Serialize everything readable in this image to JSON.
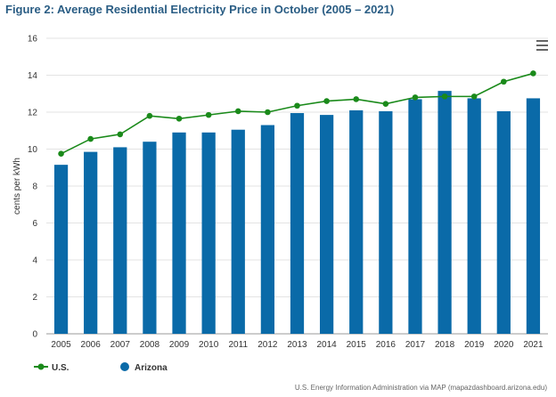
{
  "chart_data": {
    "type": "bar",
    "title": "Figure 2: Average Residential Electricity Price in October (2005 – 2021)",
    "ylabel": "cents per kWh",
    "xlabel": "",
    "ylim": [
      0,
      16
    ],
    "yticks": [
      0,
      2,
      4,
      6,
      8,
      10,
      12,
      14,
      16
    ],
    "grid": true,
    "legend_position": "bottom-left",
    "categories": [
      "2005",
      "2006",
      "2007",
      "2008",
      "2009",
      "2010",
      "2011",
      "2012",
      "2013",
      "2014",
      "2015",
      "2016",
      "2017",
      "2018",
      "2019",
      "2020",
      "2021"
    ],
    "series": [
      {
        "name": "Arizona",
        "type": "bar",
        "color": "#0a6aa8",
        "values": [
          9.15,
          9.85,
          10.1,
          10.4,
          10.9,
          10.9,
          11.05,
          11.3,
          11.95,
          11.85,
          12.1,
          12.05,
          12.7,
          13.15,
          12.75,
          12.05,
          12.75
        ]
      },
      {
        "name": "U.S.",
        "type": "line",
        "color": "#1a8a1a",
        "values": [
          9.75,
          10.55,
          10.8,
          11.8,
          11.65,
          11.85,
          12.05,
          12.0,
          12.35,
          12.6,
          12.7,
          12.45,
          12.8,
          12.85,
          12.85,
          13.65,
          14.1
        ]
      }
    ]
  },
  "source": "U.S. Energy Information Administration via MAP (mapazdashboard.arizona.edu)",
  "menu": {
    "icon": "hamburger-menu-icon"
  }
}
